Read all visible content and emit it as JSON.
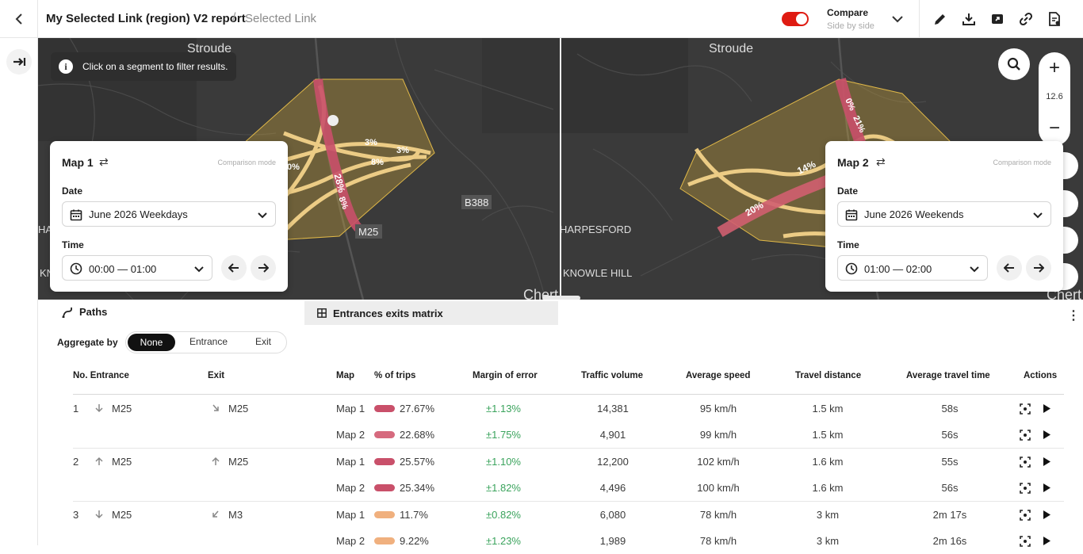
{
  "header": {
    "title": "My Selected Link (region) V2 report",
    "separator": "/",
    "subtitle": "Selected Link",
    "compare_label": "Compare",
    "compare_sub": "Side by side",
    "compare_enabled": true,
    "accent_color": "#df1b12"
  },
  "map": {
    "tooltip": "Click on a segment to filter results.",
    "zoom_level": "12.6",
    "left_labels": {
      "stroude": "Stroude",
      "b388": "B388",
      "m25": "M25",
      "ha": "HA",
      "kn": "KN",
      "chert": "Chert",
      "p1": "28%",
      "p2": "8%",
      "p3": "8%",
      "p4": "3%",
      "p5": "3%",
      "p6": "0%"
    },
    "right_labels": {
      "stroude": "Stroude",
      "harpesford": "HARPESFORD",
      "knowle": "KNOWLE HILL",
      "chert": "Chert",
      "p1": "14%",
      "p2": "20%",
      "p3": "21%",
      "p4": "0%"
    }
  },
  "map1": {
    "title": "Map 1",
    "mode": "Comparison mode",
    "date_label": "Date",
    "date_value": "June 2026 Weekdays",
    "time_label": "Time",
    "time_value": "00:00 — 01:00"
  },
  "map2": {
    "title": "Map 2",
    "mode": "Comparison mode",
    "date_label": "Date",
    "date_value": "June 2026 Weekends",
    "time_label": "Time",
    "time_value": "01:00 — 02:00"
  },
  "tabs": {
    "paths": "Paths",
    "matrix": "Entrances exits matrix"
  },
  "aggregate": {
    "label": "Aggregate by",
    "options": [
      "None",
      "Entrance",
      "Exit"
    ],
    "selected": "None"
  },
  "table": {
    "headers": {
      "no_entrance": "No. Entrance",
      "exit": "Exit",
      "map": "Map",
      "pct": "% of trips",
      "moe": "Margin of error",
      "volume": "Traffic volume",
      "speed": "Average speed",
      "distance": "Travel distance",
      "time": "Average travel time",
      "actions": "Actions"
    },
    "rows": [
      {
        "no": "1",
        "entrance": "M25",
        "exit": "M25",
        "map": "Map 1",
        "pct": "27.67%",
        "moe": "±1.13%",
        "volume": "14,381",
        "speed": "95 km/h",
        "distance": "1.5 km",
        "time": "58s",
        "bar_color": "#c9506a"
      },
      {
        "no": "",
        "entrance": "",
        "exit": "",
        "map": "Map 2",
        "pct": "22.68%",
        "moe": "±1.75%",
        "volume": "4,901",
        "speed": "99 km/h",
        "distance": "1.5 km",
        "time": "56s",
        "bar_color": "#d66a7e"
      },
      {
        "no": "2",
        "entrance": "M25",
        "exit": "M25",
        "map": "Map 1",
        "pct": "25.57%",
        "moe": "±1.10%",
        "volume": "12,200",
        "speed": "102 km/h",
        "distance": "1.6 km",
        "time": "55s",
        "bar_color": "#c9506a"
      },
      {
        "no": "",
        "entrance": "",
        "exit": "",
        "map": "Map 2",
        "pct": "25.34%",
        "moe": "±1.82%",
        "volume": "4,496",
        "speed": "100 km/h",
        "distance": "1.6 km",
        "time": "56s",
        "bar_color": "#c9506a"
      },
      {
        "no": "3",
        "entrance": "M25",
        "exit": "M3",
        "map": "Map 1",
        "pct": "11.7%",
        "moe": "±0.82%",
        "volume": "6,080",
        "speed": "78 km/h",
        "distance": "3 km",
        "time": "2m 17s",
        "bar_color": "#f0b07e"
      },
      {
        "no": "",
        "entrance": "",
        "exit": "",
        "map": "Map 2",
        "pct": "9.22%",
        "moe": "±1.23%",
        "volume": "1,989",
        "speed": "78 km/h",
        "distance": "3 km",
        "time": "2m 16s",
        "bar_color": "#f0b07e"
      }
    ]
  }
}
